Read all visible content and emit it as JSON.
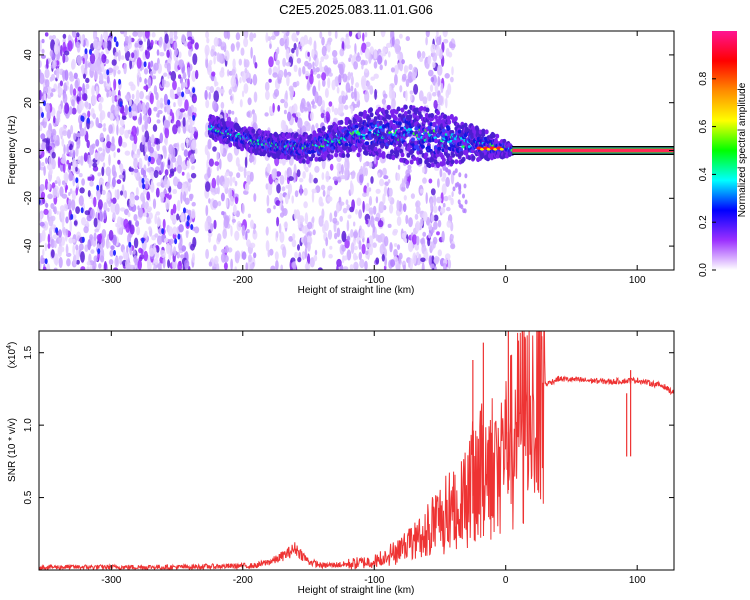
{
  "title": "C2E5.2025.083.11.01.G06",
  "chart_data": [
    {
      "type": "heatmap",
      "name": "spectrogram",
      "xlabel": "Height of straight line (km)",
      "ylabel": "Frequency (Hz)",
      "xlim": [
        -355,
        128
      ],
      "ylim": [
        -50,
        50
      ],
      "xticks": [
        -300,
        -200,
        -100,
        0,
        100
      ],
      "xtick_labels": [
        "-300",
        "-200",
        "-100",
        "0",
        "100"
      ],
      "yticks": [
        -40,
        -20,
        0,
        20,
        40
      ],
      "ytick_labels": [
        "-40",
        "-20",
        "0",
        "20",
        "40"
      ],
      "noise_regions": [
        [
          -355,
          -235
        ],
        [
          -228,
          -190
        ],
        [
          -182,
          -118
        ],
        [
          -118,
          -40
        ]
      ],
      "signal_ridge": {
        "x": [
          -225,
          -200,
          -175,
          -150,
          -125,
          -100,
          -75,
          -50,
          -25,
          0,
          5
        ],
        "frequency": [
          10,
          5,
          2,
          1,
          5,
          8,
          7,
          5,
          3,
          1,
          0
        ],
        "spread": [
          4,
          4,
          4,
          5,
          6,
          8,
          10,
          10,
          6,
          3,
          1
        ]
      },
      "carrier": {
        "x_start": 5,
        "x_end": 128,
        "frequency": 0
      },
      "colorbar": {
        "label": "Normalized spectral amplitude",
        "range": [
          0,
          1
        ],
        "ticks": [
          0.0,
          0.2,
          0.4,
          0.6,
          0.8
        ],
        "tick_labels": [
          "0.0",
          "0.2",
          "0.4",
          "0.6",
          "0.8"
        ],
        "colors": [
          "#ffffff",
          "#9b30ff",
          "#0000ff",
          "#00ffff",
          "#00ff00",
          "#ffff00",
          "#ff8c00",
          "#ff0000",
          "#ff1493"
        ]
      }
    },
    {
      "type": "line",
      "name": "snr",
      "xlabel": "Height of straight line (km)",
      "ylabel": "SNR (10 * v/v)",
      "yscale_label": "(x10",
      "yscale_exponent": "4",
      "yscale_close": ")",
      "xlim": [
        -355,
        128
      ],
      "ylim": [
        0,
        1.65
      ],
      "xticks": [
        -300,
        -200,
        -100,
        0,
        100
      ],
      "xtick_labels": [
        "-300",
        "-200",
        "-100",
        "0",
        "100"
      ],
      "yticks": [
        0.5,
        1.0,
        1.5
      ],
      "ytick_labels": [
        "0.5",
        "1.0",
        "1.5"
      ],
      "color": "#ee3333",
      "series": [
        {
          "name": "SNR",
          "x": [
            -355,
            -250,
            -190,
            -175,
            -165,
            -160,
            -150,
            -140,
            -120,
            -100,
            -80,
            -60,
            -40,
            -30,
            -20,
            -10,
            0,
            10,
            20,
            30,
            40,
            60,
            80,
            100,
            110,
            120,
            128
          ],
          "y": [
            0.02,
            0.02,
            0.03,
            0.07,
            0.12,
            0.15,
            0.06,
            0.03,
            0.04,
            0.06,
            0.16,
            0.3,
            0.45,
            0.58,
            0.72,
            0.8,
            0.88,
            1.08,
            1.2,
            1.28,
            1.32,
            1.31,
            1.3,
            1.31,
            1.29,
            1.27,
            1.22
          ]
        }
      ],
      "spikes": [
        {
          "x": -17,
          "y": 1.57
        },
        {
          "x": 2,
          "y": 1.65
        },
        {
          "x": -25,
          "y": 1.45
        },
        {
          "x": 95,
          "y": 1.38
        },
        {
          "x": 92,
          "y": 1.22
        }
      ]
    }
  ]
}
